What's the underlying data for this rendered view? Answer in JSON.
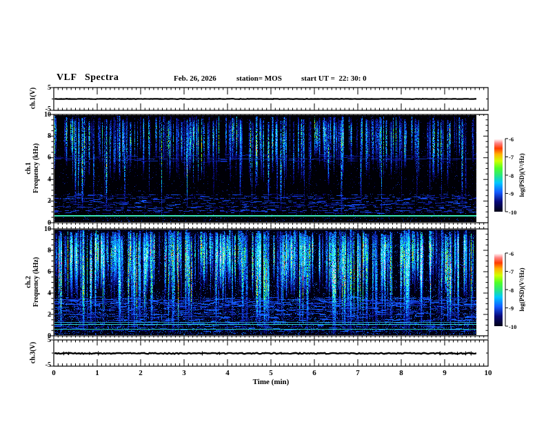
{
  "header": {
    "title": "VLF Spectra",
    "date": "Feb. 26, 2026",
    "station": "station= MOS",
    "start_ut": "start UT =  22: 30: 0"
  },
  "xaxis": {
    "label": "Time (min)",
    "ticks": [
      "0",
      "1",
      "2",
      "3",
      "4",
      "5",
      "6",
      "7",
      "8",
      "9",
      "10"
    ],
    "range_min": [
      0,
      10
    ],
    "minor_tick_interval_min": 0.1
  },
  "panels": {
    "ch1": {
      "label": "ch.1(V)",
      "yticks": [
        "5",
        "-5"
      ],
      "ylim": [
        -5,
        5
      ]
    },
    "spec1": {
      "label_line1": "ch.1",
      "label_line2": "Frequency (kHz)",
      "yticks": [
        "10",
        "8",
        "6",
        "4",
        "2",
        "0"
      ],
      "ylim": [
        0,
        10
      ]
    },
    "spec2": {
      "label_line1": "ch.2",
      "label_line2": "Frequency (kHz)",
      "yticks": [
        "10",
        "8",
        "6",
        "4",
        "2",
        "0"
      ],
      "ylim": [
        0,
        10
      ]
    },
    "ch3": {
      "label": "ch.3(V)",
      "yticks": [
        "5",
        "-5"
      ],
      "ylim": [
        -5,
        5
      ]
    }
  },
  "colorbar": {
    "label": "log(PSD)(V²/Hz)",
    "ticks": [
      "-6",
      "-7",
      "-8",
      "-9",
      "-10"
    ],
    "range": [
      -10,
      -6
    ]
  },
  "chart_data": {
    "type": "heatmap",
    "figure": "VLF spectrogram summary: two voltage strip charts (ch.1, ch.3) and two 0-10 kHz spectrograms (ch.1, ch.2) vs time 0-10 min; data record ends near 9.76 min",
    "time_axis": {
      "range_min": [
        0,
        10
      ],
      "data_end_min": 9.76
    },
    "colorbar": {
      "quantity": "log10 PSD",
      "units": "V²/Hz",
      "range": [
        -10,
        -6
      ],
      "ticks": [
        -6,
        -7,
        -8,
        -9,
        -10
      ]
    },
    "palette_stops": [
      [
        0.0,
        0,
        0,
        18
      ],
      [
        0.14,
        8,
        8,
        120
      ],
      [
        0.27,
        20,
        90,
        255
      ],
      [
        0.4,
        0,
        200,
        255
      ],
      [
        0.5,
        40,
        230,
        130
      ],
      [
        0.6,
        80,
        255,
        40
      ],
      [
        0.7,
        210,
        255,
        0
      ],
      [
        0.79,
        255,
        180,
        0
      ],
      [
        0.87,
        255,
        60,
        0
      ],
      [
        0.94,
        255,
        130,
        130
      ],
      [
        1.0,
        255,
        255,
        255
      ]
    ],
    "panels": [
      {
        "id": "ch1",
        "type": "line",
        "title": "ch.1(V)",
        "ylim": [
          -5,
          5
        ],
        "description": "flat trace at 0 V for the whole record",
        "render": {
          "seed": 3,
          "line_width": 2.2,
          "jitter": 0.3,
          "spike_count": 2,
          "spike_amp": 1.2,
          "color": "#000000"
        }
      },
      {
        "id": "spec1",
        "type": "heatmap",
        "title": "ch.1 Frequency (kHz)",
        "ylim": [
          0,
          10
        ],
        "description": "black background; sferic-like vertical streaks (blue/cyan/green) hanging from 10 kHz down to 4-6 kHz; bright cyan carrier line near 0.57 kHz; faint dashed blue lines below 2.6 kHz and near 5.9 kHz",
        "render": {
          "bg": [
            0,
            0,
            6
          ],
          "seed": 11,
          "speckle": [
            {
              "count": 1600,
              "khz": [
                2.6,
                10
              ],
              "t": [
                0.05,
                0.22
              ]
            },
            {
              "count": 1400,
              "khz": [
                0,
                2.6
              ],
              "t": [
                0.06,
                0.26
              ]
            }
          ],
          "dashes": [
            {
              "count": 420,
              "khz": [
                0.8,
                2.6
              ],
              "len": [
                3,
                12
              ],
              "t": [
                0.1,
                0.26
              ]
            },
            {
              "count": 130,
              "khz": [
                5.6,
                6.3
              ],
              "len": [
                4,
                16
              ],
              "t": [
                0.08,
                0.2
              ]
            }
          ],
          "streaks": {
            "count": 255,
            "top_khz": [
              9.3,
              9.95
            ],
            "depth_mean_khz": 5.0,
            "depth_spread_khz": 2.4,
            "deep_frac": 0.1,
            "deep_khz": [
              0.2,
              2.0
            ],
            "intensity": [
              0.22,
              0.78
            ],
            "width": [
              1,
              3
            ],
            "gap_prob": 0.18,
            "cap": 0.88
          },
          "hlines": [
            {
              "khz": 0.57,
              "color": [
                60,
                235,
                185
              ],
              "w": 2,
              "dash": null,
              "alpha": 1
            },
            {
              "khz": 1.02,
              "color": [
                30,
                60,
                200
              ],
              "w": 1,
              "dash": [
                6,
                9
              ],
              "alpha": 1
            },
            {
              "khz": 1.38,
              "color": [
                25,
                50,
                180
              ],
              "w": 1,
              "dash": [
                5,
                11
              ],
              "alpha": 1
            },
            {
              "khz": 1.82,
              "color": [
                20,
                45,
                160
              ],
              "w": 1,
              "dash": [
                4,
                13
              ],
              "alpha": 1
            },
            {
              "khz": 2.2,
              "color": [
                25,
                55,
                190
              ],
              "w": 1,
              "dash": [
                6,
                10
              ],
              "alpha": 1
            },
            {
              "khz": 2.55,
              "color": [
                18,
                40,
                150
              ],
              "w": 1,
              "dash": [
                3,
                15
              ],
              "alpha": 1
            },
            {
              "khz": 5.9,
              "color": [
                22,
                50,
                170
              ],
              "w": 1,
              "dash": [
                10,
                7
              ],
              "alpha": 0.9
            }
          ]
        }
      },
      {
        "id": "spec2",
        "type": "heatmap",
        "title": "ch.2 Frequency (kHz)",
        "ylim": [
          0,
          10
        ],
        "description": "dense intense activity 4-10 kHz: green streaks with yellow/red cores; blue noise floor below 4 kHz; cyan carrier lines near 0.5 and 1.0-1.2 kHz; dashed blue lines 2-3.4 kHz",
        "render": {
          "bg": [
            0,
            0,
            17
          ],
          "seed": 29,
          "speckle": [
            {
              "count": 5200,
              "khz": [
                3.6,
                10
              ],
              "t": [
                0.07,
                0.3
              ]
            },
            {
              "count": 6200,
              "khz": [
                0,
                3.6
              ],
              "t": [
                0.08,
                0.33
              ]
            }
          ],
          "dashes": [
            {
              "count": 800,
              "khz": [
                0.3,
                3.6
              ],
              "len": [
                3,
                14
              ],
              "t": [
                0.12,
                0.3
              ]
            },
            {
              "count": 260,
              "khz": [
                2.6,
                3.4
              ],
              "len": [
                4,
                12
              ],
              "t": [
                0.12,
                0.28
              ]
            }
          ],
          "streaks": {
            "count": 345,
            "top_khz": [
              9.3,
              9.98
            ],
            "depth_mean_khz": 4.6,
            "depth_spread_khz": 2.0,
            "deep_frac": 0.3,
            "deep_khz": [
              0,
              1.5
            ],
            "intensity": [
              0.4,
              1.0
            ],
            "width": [
              1,
              4
            ],
            "gap_prob": 0.12,
            "cap": 0.95
          },
          "hlines": [
            {
              "khz": 0.5,
              "color": [
                40,
                215,
                200
              ],
              "w": 1,
              "dash": null,
              "alpha": 0.9
            },
            {
              "khz": 1.0,
              "color": [
                50,
                225,
                205
              ],
              "w": 1,
              "dash": null,
              "alpha": 0.95
            },
            {
              "khz": 1.18,
              "color": [
                40,
                190,
                220
              ],
              "w": 1,
              "dash": null,
              "alpha": 0.8
            },
            {
              "khz": 2.0,
              "color": [
                30,
                70,
                200
              ],
              "w": 1,
              "dash": [
                8,
                8
              ],
              "alpha": 0.9
            },
            {
              "khz": 2.45,
              "color": [
                28,
                65,
                190
              ],
              "w": 1,
              "dash": [
                6,
                10
              ],
              "alpha": 0.9
            },
            {
              "khz": 2.95,
              "color": [
                32,
                75,
                205
              ],
              "w": 1,
              "dash": [
                7,
                9
              ],
              "alpha": 0.9
            },
            {
              "khz": 3.35,
              "color": [
                26,
                60,
                180
              ],
              "w": 1,
              "dash": [
                5,
                12
              ],
              "alpha": 0.9
            }
          ]
        }
      },
      {
        "id": "ch3",
        "type": "line",
        "title": "ch.3(V)",
        "ylim": [
          -5,
          5
        ],
        "description": "nearly flat noisy trace at 0 V with tiny spikes",
        "render": {
          "seed": 5,
          "line_width": 2.4,
          "jitter": 0.8,
          "spike_count": 16,
          "spike_amp": 2.2,
          "color": "#000000"
        }
      }
    ]
  }
}
